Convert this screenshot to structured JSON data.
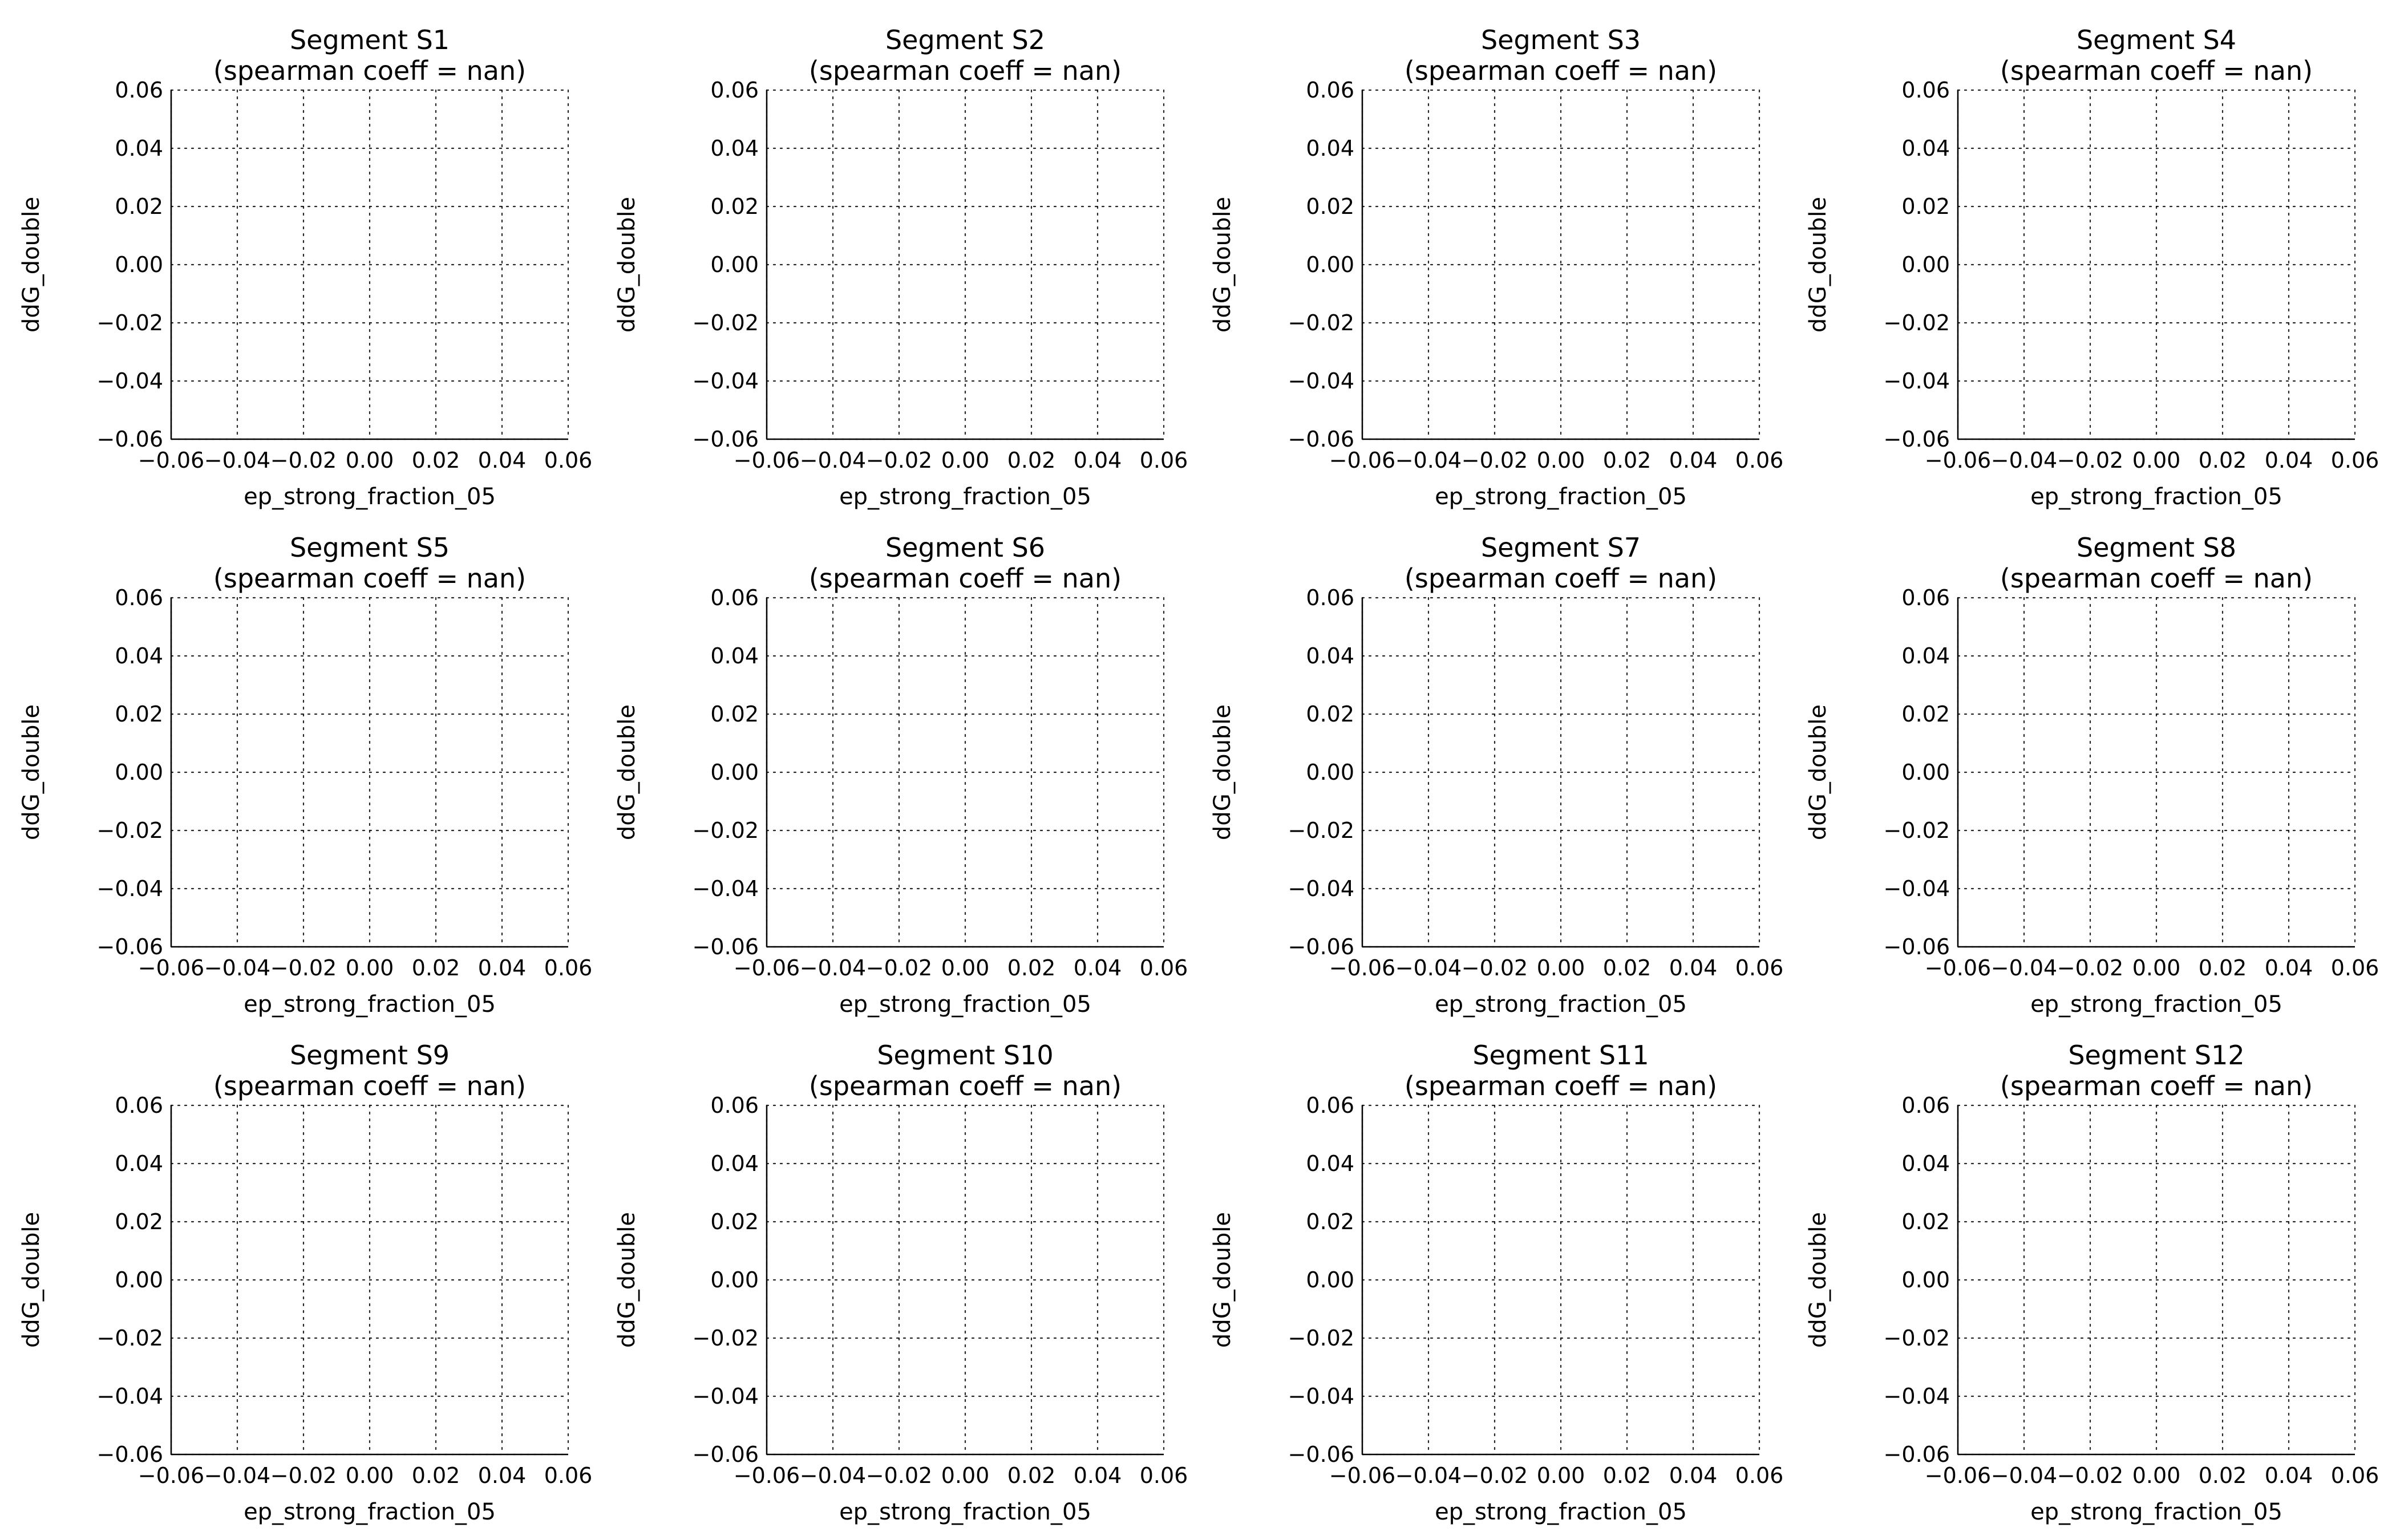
{
  "chart_data": [
    {
      "type": "scatter",
      "title": "Segment S1",
      "subtitle": "(spearman coeff = nan)",
      "xlabel": "ep_strong_fraction_05",
      "ylabel": "ddG_double",
      "xlim": [
        -0.06,
        0.06
      ],
      "ylim": [
        -0.06,
        0.06
      ],
      "x_ticks": [
        "−0.06",
        "−0.04",
        "−0.02",
        "0.00",
        "0.02",
        "0.04",
        "0.06"
      ],
      "y_ticks": [
        "0.06",
        "0.04",
        "0.02",
        "0.00",
        "−0.02",
        "−0.04",
        "−0.06"
      ],
      "grid": true,
      "x": [],
      "y": []
    },
    {
      "type": "scatter",
      "title": "Segment S2",
      "subtitle": "(spearman coeff = nan)",
      "xlabel": "ep_strong_fraction_05",
      "ylabel": "ddG_double",
      "xlim": [
        -0.06,
        0.06
      ],
      "ylim": [
        -0.06,
        0.06
      ],
      "x_ticks": [
        "−0.06",
        "−0.04",
        "−0.02",
        "0.00",
        "0.02",
        "0.04",
        "0.06"
      ],
      "y_ticks": [
        "0.06",
        "0.04",
        "0.02",
        "0.00",
        "−0.02",
        "−0.04",
        "−0.06"
      ],
      "grid": true,
      "x": [],
      "y": []
    },
    {
      "type": "scatter",
      "title": "Segment S3",
      "subtitle": "(spearman coeff = nan)",
      "xlabel": "ep_strong_fraction_05",
      "ylabel": "ddG_double",
      "xlim": [
        -0.06,
        0.06
      ],
      "ylim": [
        -0.06,
        0.06
      ],
      "x_ticks": [
        "−0.06",
        "−0.04",
        "−0.02",
        "0.00",
        "0.02",
        "0.04",
        "0.06"
      ],
      "y_ticks": [
        "0.06",
        "0.04",
        "0.02",
        "0.00",
        "−0.02",
        "−0.04",
        "−0.06"
      ],
      "grid": true,
      "x": [],
      "y": []
    },
    {
      "type": "scatter",
      "title": "Segment S4",
      "subtitle": "(spearman coeff = nan)",
      "xlabel": "ep_strong_fraction_05",
      "ylabel": "ddG_double",
      "xlim": [
        -0.06,
        0.06
      ],
      "ylim": [
        -0.06,
        0.06
      ],
      "x_ticks": [
        "−0.06",
        "−0.04",
        "−0.02",
        "0.00",
        "0.02",
        "0.04",
        "0.06"
      ],
      "y_ticks": [
        "0.06",
        "0.04",
        "0.02",
        "0.00",
        "−0.02",
        "−0.04",
        "−0.06"
      ],
      "grid": true,
      "x": [],
      "y": []
    },
    {
      "type": "scatter",
      "title": "Segment S5",
      "subtitle": "(spearman coeff = nan)",
      "xlabel": "ep_strong_fraction_05",
      "ylabel": "ddG_double",
      "xlim": [
        -0.06,
        0.06
      ],
      "ylim": [
        -0.06,
        0.06
      ],
      "x_ticks": [
        "−0.06",
        "−0.04",
        "−0.02",
        "0.00",
        "0.02",
        "0.04",
        "0.06"
      ],
      "y_ticks": [
        "0.06",
        "0.04",
        "0.02",
        "0.00",
        "−0.02",
        "−0.04",
        "−0.06"
      ],
      "grid": true,
      "x": [],
      "y": []
    },
    {
      "type": "scatter",
      "title": "Segment S6",
      "subtitle": "(spearman coeff = nan)",
      "xlabel": "ep_strong_fraction_05",
      "ylabel": "ddG_double",
      "xlim": [
        -0.06,
        0.06
      ],
      "ylim": [
        -0.06,
        0.06
      ],
      "x_ticks": [
        "−0.06",
        "−0.04",
        "−0.02",
        "0.00",
        "0.02",
        "0.04",
        "0.06"
      ],
      "y_ticks": [
        "0.06",
        "0.04",
        "0.02",
        "0.00",
        "−0.02",
        "−0.04",
        "−0.06"
      ],
      "grid": true,
      "x": [],
      "y": []
    },
    {
      "type": "scatter",
      "title": "Segment S7",
      "subtitle": "(spearman coeff = nan)",
      "xlabel": "ep_strong_fraction_05",
      "ylabel": "ddG_double",
      "xlim": [
        -0.06,
        0.06
      ],
      "ylim": [
        -0.06,
        0.06
      ],
      "x_ticks": [
        "−0.06",
        "−0.04",
        "−0.02",
        "0.00",
        "0.02",
        "0.04",
        "0.06"
      ],
      "y_ticks": [
        "0.06",
        "0.04",
        "0.02",
        "0.00",
        "−0.02",
        "−0.04",
        "−0.06"
      ],
      "grid": true,
      "x": [],
      "y": []
    },
    {
      "type": "scatter",
      "title": "Segment S8",
      "subtitle": "(spearman coeff = nan)",
      "xlabel": "ep_strong_fraction_05",
      "ylabel": "ddG_double",
      "xlim": [
        -0.06,
        0.06
      ],
      "ylim": [
        -0.06,
        0.06
      ],
      "x_ticks": [
        "−0.06",
        "−0.04",
        "−0.02",
        "0.00",
        "0.02",
        "0.04",
        "0.06"
      ],
      "y_ticks": [
        "0.06",
        "0.04",
        "0.02",
        "0.00",
        "−0.02",
        "−0.04",
        "−0.06"
      ],
      "grid": true,
      "x": [],
      "y": []
    },
    {
      "type": "scatter",
      "title": "Segment S9",
      "subtitle": "(spearman coeff = nan)",
      "xlabel": "ep_strong_fraction_05",
      "ylabel": "ddG_double",
      "xlim": [
        -0.06,
        0.06
      ],
      "ylim": [
        -0.06,
        0.06
      ],
      "x_ticks": [
        "−0.06",
        "−0.04",
        "−0.02",
        "0.00",
        "0.02",
        "0.04",
        "0.06"
      ],
      "y_ticks": [
        "0.06",
        "0.04",
        "0.02",
        "0.00",
        "−0.02",
        "−0.04",
        "−0.06"
      ],
      "grid": true,
      "x": [],
      "y": []
    },
    {
      "type": "scatter",
      "title": "Segment S10",
      "subtitle": "(spearman coeff = nan)",
      "xlabel": "ep_strong_fraction_05",
      "ylabel": "ddG_double",
      "xlim": [
        -0.06,
        0.06
      ],
      "ylim": [
        -0.06,
        0.06
      ],
      "x_ticks": [
        "−0.06",
        "−0.04",
        "−0.02",
        "0.00",
        "0.02",
        "0.04",
        "0.06"
      ],
      "y_ticks": [
        "0.06",
        "0.04",
        "0.02",
        "0.00",
        "−0.02",
        "−0.04",
        "−0.06"
      ],
      "grid": true,
      "x": [],
      "y": []
    },
    {
      "type": "scatter",
      "title": "Segment S11",
      "subtitle": "(spearman coeff = nan)",
      "xlabel": "ep_strong_fraction_05",
      "ylabel": "ddG_double",
      "xlim": [
        -0.06,
        0.06
      ],
      "ylim": [
        -0.06,
        0.06
      ],
      "x_ticks": [
        "−0.06",
        "−0.04",
        "−0.02",
        "0.00",
        "0.02",
        "0.04",
        "0.06"
      ],
      "y_ticks": [
        "0.06",
        "0.04",
        "0.02",
        "0.00",
        "−0.02",
        "−0.04",
        "−0.06"
      ],
      "grid": true,
      "x": [],
      "y": []
    },
    {
      "type": "scatter",
      "title": "Segment S12",
      "subtitle": "(spearman coeff = nan)",
      "xlabel": "ep_strong_fraction_05",
      "ylabel": "ddG_double",
      "xlim": [
        -0.06,
        0.06
      ],
      "ylim": [
        -0.06,
        0.06
      ],
      "x_ticks": [
        "−0.06",
        "−0.04",
        "−0.02",
        "0.00",
        "0.02",
        "0.04",
        "0.06"
      ],
      "y_ticks": [
        "0.06",
        "0.04",
        "0.02",
        "0.00",
        "−0.02",
        "−0.04",
        "−0.06"
      ],
      "grid": true,
      "x": [],
      "y": []
    }
  ]
}
